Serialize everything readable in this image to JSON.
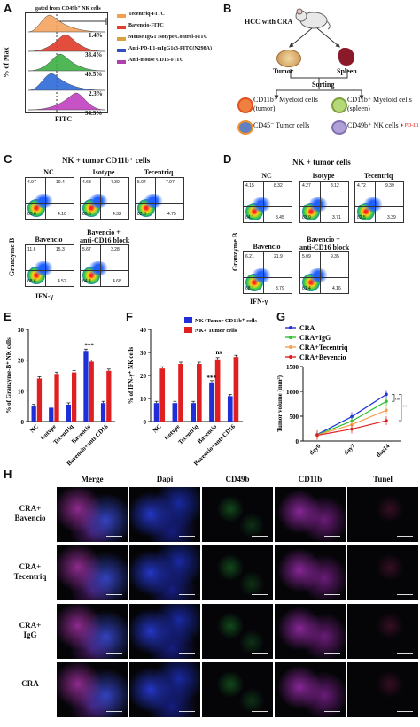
{
  "panels": {
    "A": {
      "label": "A",
      "header": "gated from CD49b⁺ NK cells",
      "ylabel": "% of Max",
      "xlabel": "FITC",
      "legend": [
        {
          "text": "Tecentriq-FITC",
          "color": "#f0a050"
        },
        {
          "text": "Bavencio-FITC",
          "color": "#e04030"
        },
        {
          "text": "Mouse IgG1 Isotype Control-FITC",
          "color": "#d9a040"
        },
        {
          "text": "Anti-PD-L1-mIgG1e3-FITC(N298A)",
          "color": "#3050c0"
        },
        {
          "text": "Anti-mouse CD16-FITC",
          "color": "#b040b0"
        }
      ],
      "percents": [
        "1.4%",
        "38.4%",
        "49.5%",
        "2.3%",
        "94.3%"
      ],
      "histogram_colors": [
        "#f4a460",
        "#e03a2a",
        "#3cb043",
        "#2c6ad8",
        "#c040c0"
      ]
    },
    "B": {
      "label": "B",
      "hcc": "HCC with CRA",
      "tumor": "Tumor",
      "spleen": "Spleen",
      "sorting": "Sorting",
      "items": [
        "CD11b⁺ Myeloid cells (tumor)",
        "CD11b⁺ Myeloid cells (spleen)",
        "CD45⁻ Tumor cells",
        "CD49b⁺ NK cells"
      ],
      "pdl1": "PD-L1"
    },
    "C": {
      "label": "C",
      "title": "NK + tumor CD11b⁺ cells",
      "ylabel": "Granzyme B",
      "xlabel": "IFN-γ",
      "plots": [
        {
          "name": "NC",
          "q": [
            "4.97",
            "10.4",
            "80.6",
            "4.10"
          ]
        },
        {
          "name": "Isotype",
          "q": [
            "4.63",
            "7.30",
            "83.6",
            "4.32"
          ]
        },
        {
          "name": "Tecentriq",
          "q": [
            "5.04",
            "7.97",
            "82.3",
            "4.75"
          ]
        },
        {
          "name": "Bavencio",
          "q": [
            "11.6",
            "15.3",
            "68.6",
            "4.52"
          ]
        },
        {
          "name": "Bavencio +\nanti-CD16 block",
          "q": [
            "5.67",
            "3.28",
            "84.4",
            "4.68"
          ]
        }
      ]
    },
    "D": {
      "label": "D",
      "title": "NK + tumor cells",
      "ylabel": "Granzyme B",
      "xlabel": "IFN-γ",
      "plots": [
        {
          "name": "NC",
          "q": [
            "4.15",
            "8.32",
            "84.1",
            "3.45"
          ]
        },
        {
          "name": "Isotype",
          "q": [
            "4.27",
            "8.12",
            "83.9",
            "3.71"
          ]
        },
        {
          "name": "Tecentriq",
          "q": [
            "4.72",
            "9.39",
            "82.5",
            "3.39"
          ]
        },
        {
          "name": "Bavencio",
          "q": [
            "6.21",
            "21.9",
            "68.1",
            "3.79"
          ]
        },
        {
          "name": "Bavencio +\nanti-CD16 block",
          "q": [
            "5.09",
            "9.35",
            "81.4",
            "4.16"
          ]
        }
      ]
    },
    "E": {
      "label": "E"
    },
    "F": {
      "label": "F"
    },
    "G": {
      "label": "G"
    },
    "H": {
      "label": "H",
      "columns": [
        "Merge",
        "Dapi",
        "CD49b",
        "CD11b",
        "Tunel"
      ],
      "rows": [
        "CRA+\nBavencio",
        "CRA+\nTecentriq",
        "CRA+\nIgG",
        "CRA"
      ]
    }
  },
  "chart_data": [
    {
      "type": "bar",
      "panel": "E",
      "ylabel": "% of Granzyme-B⁺ NK cells",
      "ylim": [
        0,
        30
      ],
      "yticks": [
        0,
        10,
        20,
        30
      ],
      "categories": [
        "NC",
        "Isotype",
        "Tecentriq",
        "Bavencio",
        "Bavencio+anti-CD16"
      ],
      "series": [
        {
          "color": "#1f2fd8",
          "values": [
            5,
            4.5,
            5.5,
            23,
            6
          ]
        },
        {
          "color": "#e02020",
          "values": [
            14,
            15.5,
            16,
            19.5,
            16.5
          ]
        }
      ],
      "annotations": [
        "***"
      ]
    },
    {
      "type": "bar",
      "panel": "F",
      "ylabel": "% of IFN-γ⁺ NK cells",
      "ylim": [
        0,
        40
      ],
      "yticks": [
        0,
        10,
        20,
        30,
        40
      ],
      "categories": [
        "NC",
        "Isotype",
        "Tecentriq",
        "Bavencio",
        "Bavencio+anti-CD16"
      ],
      "series": [
        {
          "name": "NK+Tumor CD11b⁺ cells",
          "color": "#1f2fd8",
          "values": [
            8,
            8,
            8,
            17,
            11
          ]
        },
        {
          "name": "NK+ Tumor cells",
          "color": "#e02020",
          "values": [
            23,
            25,
            25,
            27,
            28
          ]
        }
      ],
      "annotations": [
        "ns",
        "***"
      ]
    },
    {
      "type": "line",
      "panel": "G",
      "ylabel": "Tumor volume (mm³)",
      "ylim": [
        0,
        1500
      ],
      "yticks": [
        0,
        500,
        1000,
        1500
      ],
      "categories": [
        "day0",
        "day7",
        "day14"
      ],
      "series": [
        {
          "name": "CRA",
          "color": "#1f2fd8",
          "values": [
            130,
            490,
            940
          ]
        },
        {
          "name": "CRA+IgG",
          "color": "#30c030",
          "values": [
            125,
            400,
            800
          ]
        },
        {
          "name": "CRA+Tecentriq",
          "color": "#f5a050",
          "values": [
            120,
            330,
            620
          ]
        },
        {
          "name": "CRA+Bevencio",
          "color": "#e02020",
          "values": [
            115,
            240,
            410
          ]
        }
      ],
      "annotations": [
        "ns",
        "**"
      ]
    }
  ]
}
